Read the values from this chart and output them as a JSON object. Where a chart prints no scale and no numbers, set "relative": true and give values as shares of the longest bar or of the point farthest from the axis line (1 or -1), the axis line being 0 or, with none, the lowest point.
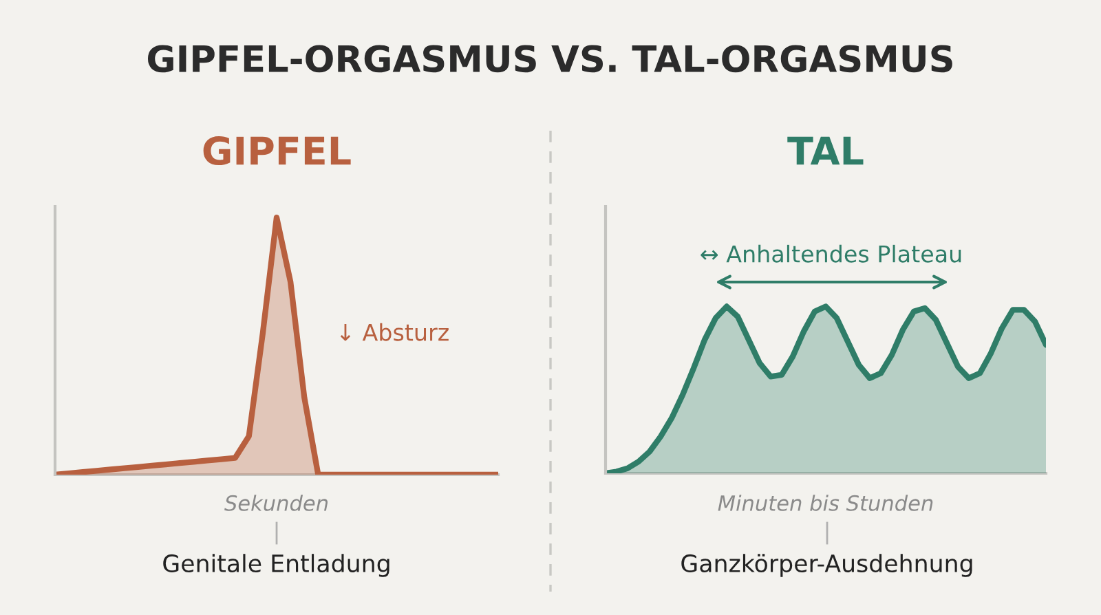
{
  "chart_data": [
    {
      "type": "area",
      "title": "GIPFEL",
      "xlabel": "Sekunden",
      "relative": true,
      "annotations": [
        "GIPFEL-ORGASMUS VS. TAL-ORGASMUS",
        "↓ Absturz",
        "Genitale Entladung"
      ],
      "categories": [
        null,
        null,
        null,
        null,
        null,
        null,
        null,
        null,
        null,
        null,
        null,
        null,
        null,
        null,
        null,
        null,
        null,
        null,
        null,
        null,
        null,
        null,
        null,
        null,
        null,
        null,
        null,
        null,
        null,
        null,
        null,
        null,
        null
      ],
      "series": [
        {
          "color": "#b8603f",
          "values": [
            0,
            0.005,
            0.01,
            0.015,
            0.02,
            0.025,
            0.03,
            0.035,
            0.04,
            0.045,
            0.05,
            0.055,
            0.06,
            0.065,
            0.15,
            0.55,
            1.0,
            0.75,
            0.3,
            0,
            0,
            0,
            0,
            0,
            0,
            0,
            0,
            0,
            0,
            0,
            0,
            0,
            0
          ]
        }
      ]
    },
    {
      "type": "area",
      "title": "TAL",
      "xlabel": "Minuten bis Stunden",
      "relative": true,
      "annotations": [
        "↔ Anhaltendes Plateau",
        "Ganzkörper-Ausdehnung"
      ],
      "categories": [
        null,
        null,
        null,
        null,
        null,
        null,
        null,
        null,
        null,
        null,
        null,
        null,
        null,
        null,
        null,
        null,
        null,
        null,
        null,
        null,
        null,
        null,
        null,
        null,
        null,
        null,
        null,
        null,
        null,
        null,
        null,
        null,
        null,
        null,
        null,
        null,
        null,
        null,
        null,
        null,
        null
      ],
      "series": [
        {
          "color": "#2f7d68",
          "values": [
            0,
            0.01,
            0.03,
            0.07,
            0.13,
            0.22,
            0.33,
            0.47,
            0.63,
            0.8,
            0.93,
            1.0,
            0.94,
            0.8,
            0.66,
            0.58,
            0.59,
            0.7,
            0.85,
            0.97,
            1.0,
            0.93,
            0.79,
            0.65,
            0.57,
            0.6,
            0.71,
            0.86,
            0.97,
            0.99,
            0.92,
            0.78,
            0.64,
            0.57,
            0.6,
            0.72,
            0.87,
            0.98,
            0.98,
            0.91,
            0.77
          ]
        }
      ]
    }
  ]
}
